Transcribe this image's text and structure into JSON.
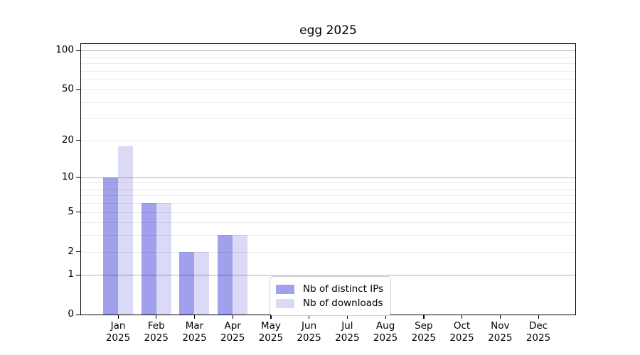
{
  "chart_data": {
    "type": "bar",
    "title": "egg 2025",
    "year_label": "2025",
    "categories": [
      "Jan",
      "Feb",
      "Mar",
      "Apr",
      "May",
      "Jun",
      "Jul",
      "Aug",
      "Sep",
      "Oct",
      "Nov",
      "Dec"
    ],
    "series": [
      {
        "name": "Nb of distinct IPs",
        "color": "#8f8fea",
        "values": [
          10,
          6,
          2,
          3,
          0,
          0,
          0,
          0,
          0,
          0,
          0,
          0
        ]
      },
      {
        "name": "Nb of downloads",
        "color": "#d4d4f6",
        "values": [
          18,
          6,
          2,
          3,
          0,
          0,
          0,
          0,
          0,
          0,
          0,
          0
        ]
      }
    ],
    "yscale": "log1p",
    "ylim": [
      0,
      112
    ],
    "yticks": [
      0,
      1,
      2,
      5,
      10,
      20,
      50,
      100
    ],
    "major_gridlines": [
      1,
      10,
      100
    ],
    "minor_gridlines": [
      2,
      3,
      4,
      5,
      6,
      7,
      8,
      9,
      20,
      30,
      40,
      50,
      60,
      70,
      80,
      90,
      110
    ],
    "grid": "on",
    "legend_position": "inside-bottom-center"
  }
}
